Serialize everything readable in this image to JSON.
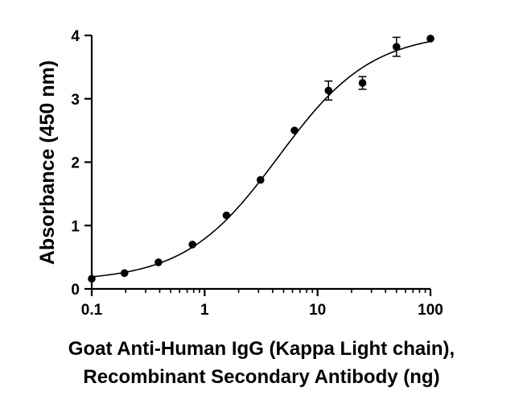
{
  "chart_data": {
    "type": "scatter",
    "xlabel_lines": [
      "Goat Anti-Human IgG (Kappa Light chain),",
      "Recombinant Secondary Antibody (ng)"
    ],
    "ylabel": "Absorbance (450 nm)",
    "x_scale": "log",
    "xlim": [
      0.1,
      100
    ],
    "ylim": [
      0,
      4
    ],
    "x_ticks": [
      0.1,
      1,
      10,
      100
    ],
    "x_tick_labels": [
      "0.1",
      "1",
      "10",
      "100"
    ],
    "y_ticks": [
      0,
      1,
      2,
      3,
      4
    ],
    "y_tick_labels": [
      "0",
      "1",
      "2",
      "3",
      "4"
    ],
    "grid": false,
    "points": [
      {
        "x": 0.1,
        "y": 0.16,
        "err": 0
      },
      {
        "x": 0.195,
        "y": 0.25,
        "err": 0
      },
      {
        "x": 0.39,
        "y": 0.42,
        "err": 0
      },
      {
        "x": 0.78,
        "y": 0.7,
        "err": 0
      },
      {
        "x": 1.56,
        "y": 1.16,
        "err": 0
      },
      {
        "x": 3.125,
        "y": 1.72,
        "err": 0
      },
      {
        "x": 6.25,
        "y": 2.5,
        "err": 0
      },
      {
        "x": 12.5,
        "y": 3.13,
        "err": 0.15
      },
      {
        "x": 25,
        "y": 3.25,
        "err": 0.1
      },
      {
        "x": 50,
        "y": 3.82,
        "err": 0.15
      },
      {
        "x": 100,
        "y": 3.95,
        "err": 0
      }
    ],
    "fit_curve": {
      "type": "4PL",
      "bottom": 0.12,
      "top": 4.05,
      "ec50": 4.5,
      "hill": 1.05
    }
  }
}
